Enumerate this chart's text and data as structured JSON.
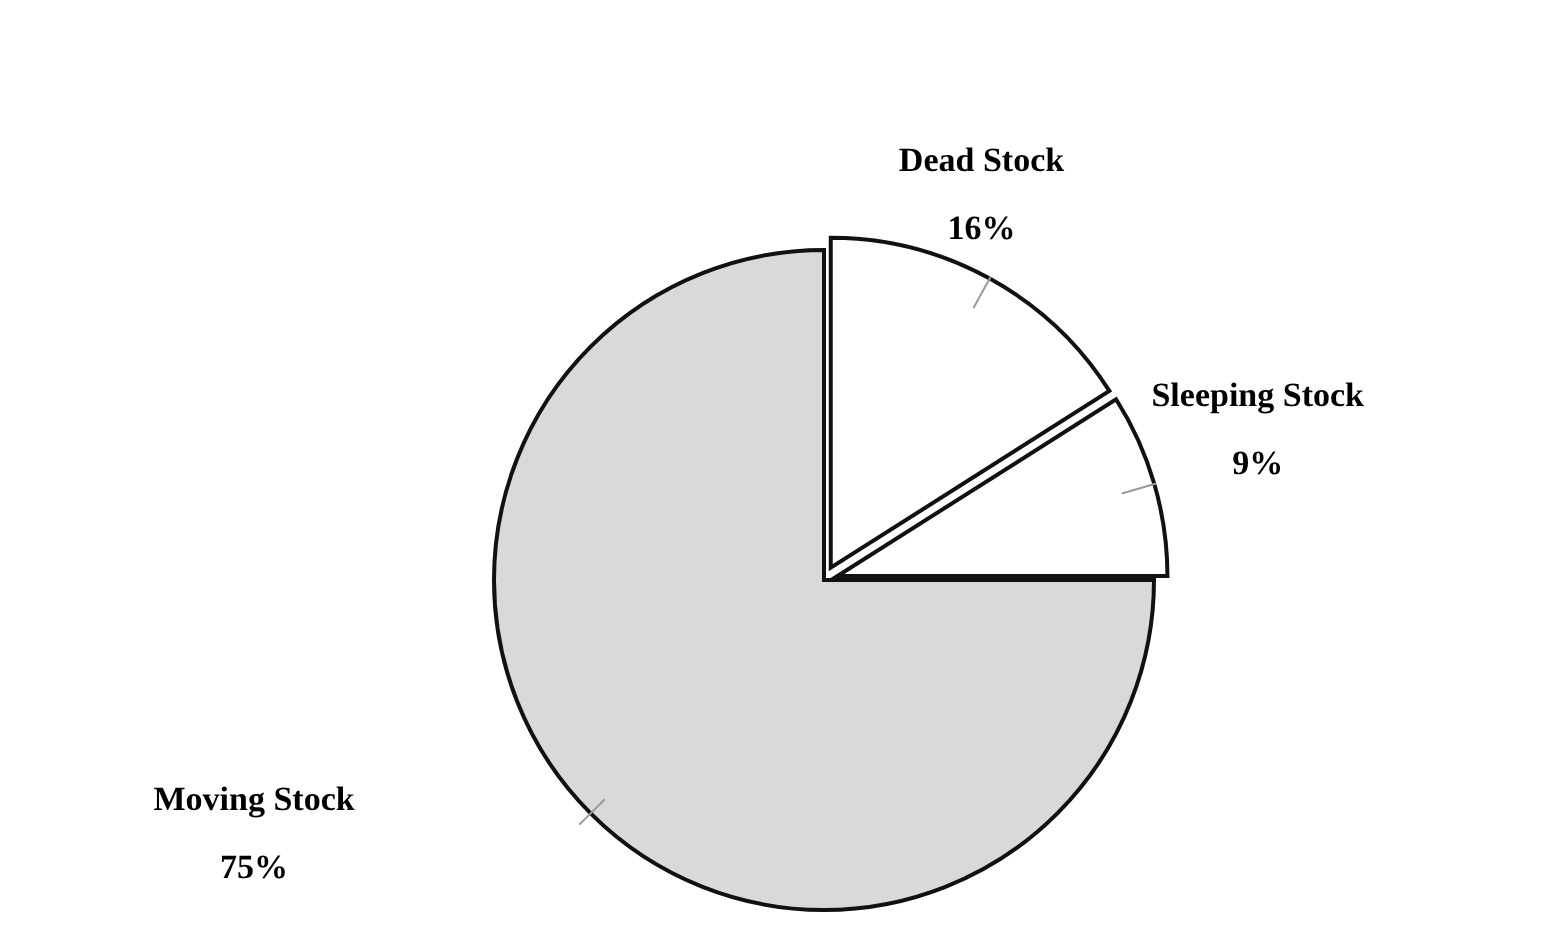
{
  "chart_data": {
    "type": "pie",
    "categories": [
      "Dead Stock",
      "Sleeping Stock",
      "Moving Stock"
    ],
    "values": [
      16,
      9,
      75
    ],
    "colors": [
      "#ffffff",
      "#ffffff",
      "#d9d9d9"
    ],
    "value_labels": [
      "16%",
      "9%",
      "75%"
    ]
  }
}
